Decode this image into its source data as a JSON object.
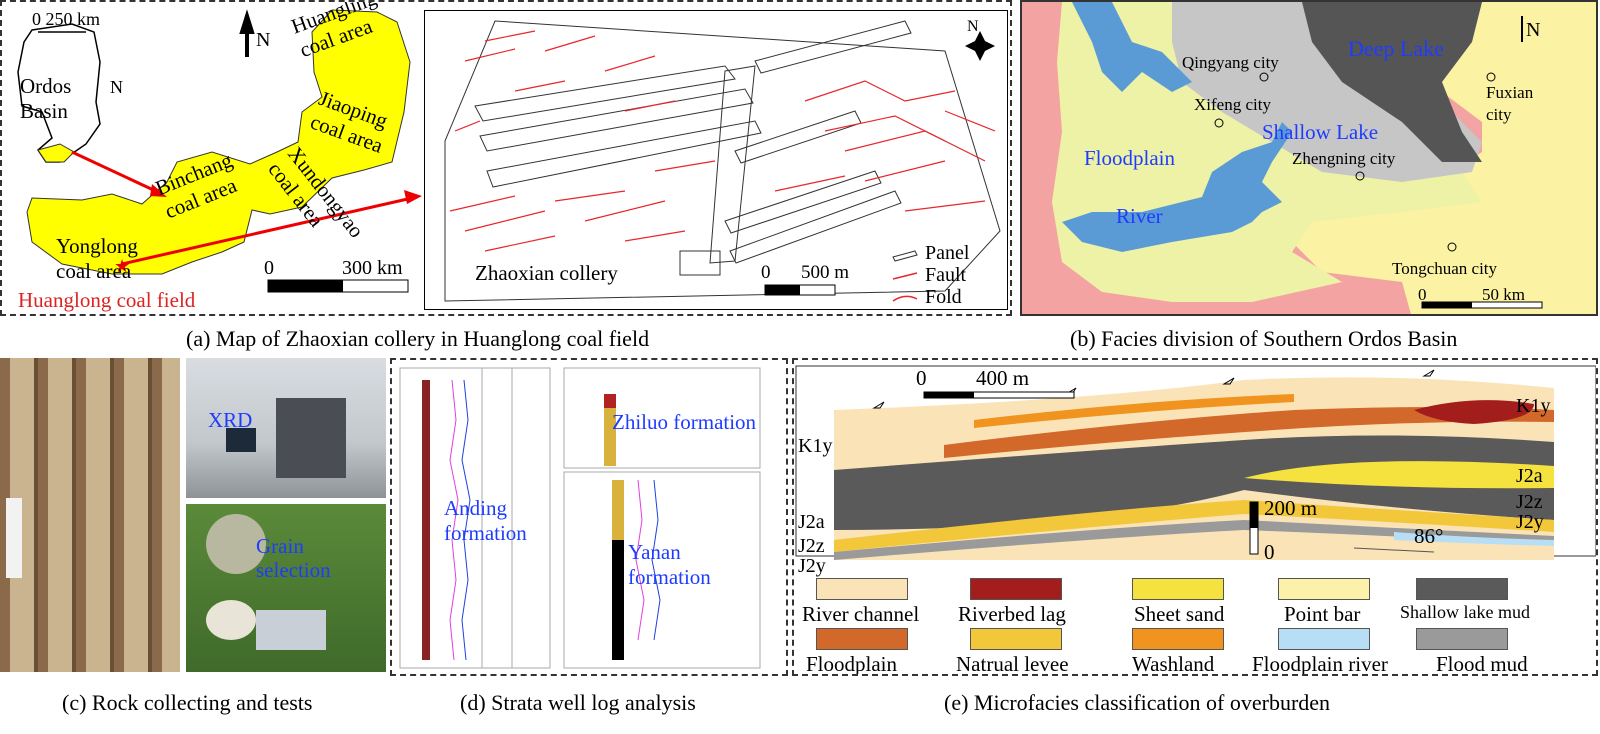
{
  "panel_a": {
    "caption": "(a) Map of Zhaoxian collery in Huanglong coal field",
    "scale_top": "0  250 km",
    "north": "N",
    "ordos_basin": "Ordos\nBasin",
    "ordos_n": "N",
    "huangling": "Huangling\ncoal area",
    "jiaoping": "Jiaoping\ncoal area",
    "xundongyao": "Xundongyao\ncoal area",
    "binchang": "Binchang\ncoal area",
    "yonglong": "Yonglong\ncoal area",
    "huanglong_field": "Huanglong coal field",
    "scale_zero": "0",
    "scale_max": "300 km",
    "collery": "Zhaoxian collery",
    "scale2_zero": "0",
    "scale2_max": "500 m",
    "north2": "N",
    "legend": [
      "Panel",
      "Fault",
      "Fold"
    ]
  },
  "panel_b": {
    "caption": "(b) Facies division of Southern Ordos Basin",
    "deep_lake": "Deep Lake",
    "north": "N",
    "qingyang": "Qingyang city",
    "xifeng": "Xifeng city",
    "fuxian": "Fuxian\ncity",
    "shallow_lake": "Shallow Lake",
    "floodplain": "Floodplain",
    "zhengning": "Zhengning city",
    "river": "River",
    "tongchuan": "Tongchuan city",
    "scale_zero": "0",
    "scale_max": "50 km"
  },
  "panel_c": {
    "caption": "(c) Rock collecting and tests",
    "xrd": "XRD",
    "grain": "Grain\nselection"
  },
  "panel_d": {
    "caption": "(d) Strata well log analysis",
    "anding": "Anding\nformation",
    "zhiluo": "Zhiluo formation",
    "yanan": "Yanan\nformation"
  },
  "panel_e": {
    "caption": "(e) Microfacies classification of overburden",
    "scale_zero": "0",
    "scale_max": "400 m",
    "vscale_max": "200 m",
    "vscale_zero": "0",
    "angle": "86°",
    "left_labels": [
      "K1y",
      "J2a",
      "J2z",
      "J2y"
    ],
    "right_labels": [
      "K1y",
      "J2a",
      "J2z",
      "J2y"
    ],
    "legend": [
      {
        "label": "River channel",
        "color": "#fbe3b8"
      },
      {
        "label": "Riverbed lag",
        "color": "#a31d1d"
      },
      {
        "label": "Sheet sand",
        "color": "#f5e23f"
      },
      {
        "label": "Point bar",
        "color": "#fbf1a8"
      },
      {
        "label": "Shallow lake mud",
        "color": "#5a5a5a"
      },
      {
        "label": "Floodplain",
        "color": "#d2692a"
      },
      {
        "label": "Natrual levee",
        "color": "#f2c83a"
      },
      {
        "label": "Washland",
        "color": "#f0931f"
      },
      {
        "label": "Floodplain river",
        "color": "#b8def5"
      },
      {
        "label": "Flood mud",
        "color": "#9a9a9a"
      }
    ]
  },
  "colors": {
    "coal_area": "#ffff00",
    "fault": "#e8262b",
    "facies_pink": "#f4a3a3",
    "facies_yellow": "#fbf3a3",
    "facies_green": "#eef2a6",
    "facies_gray": "#c6c6c6",
    "facies_dark": "#555555",
    "river_blue": "#5b9bd5",
    "text_blue": "#1e3cff"
  }
}
